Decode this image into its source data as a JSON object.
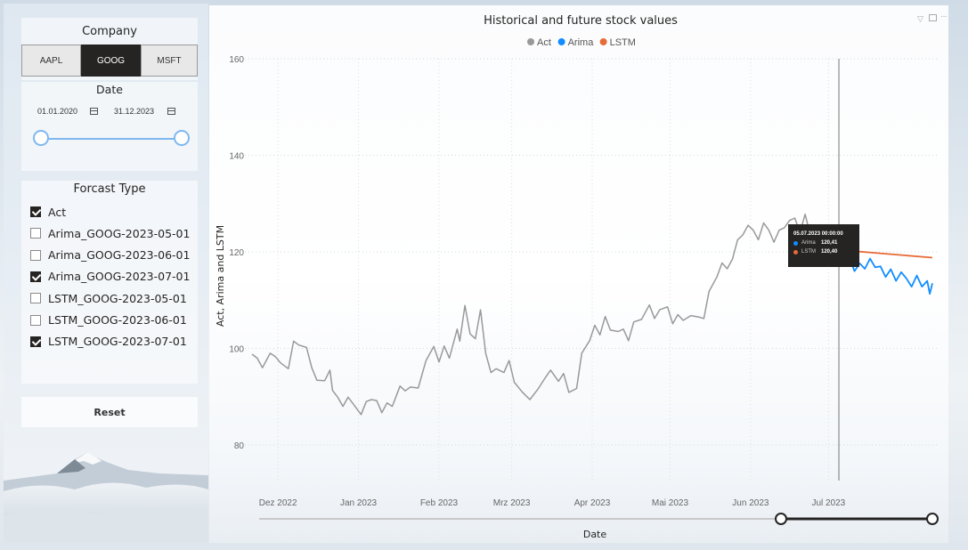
{
  "company_slicer": {
    "title": "Company",
    "options": [
      "AAPL",
      "GOOG",
      "MSFT"
    ],
    "selected": "GOOG"
  },
  "date_slicer": {
    "title": "Date",
    "start": "01.01.2020",
    "end": "31.12.2023"
  },
  "forecast_slicer": {
    "title": "Forcast Type",
    "items": [
      {
        "label": "Act",
        "checked": true
      },
      {
        "label": "Arima_GOOG-2023-05-01",
        "checked": false
      },
      {
        "label": "Arima_GOOG-2023-06-01",
        "checked": false
      },
      {
        "label": "Arima_GOOG-2023-07-01",
        "checked": true
      },
      {
        "label": "LSTM_GOOG-2023-05-01",
        "checked": false
      },
      {
        "label": "LSTM_GOOG-2023-06-01",
        "checked": false
      },
      {
        "label": "LSTM_GOOG-2023-07-01",
        "checked": true
      }
    ]
  },
  "reset_label": "Reset",
  "tooltip": {
    "title": "05.07.2023 00:00:00",
    "rows": [
      {
        "key": "Arima",
        "value": "120,41",
        "color": "#118dff"
      },
      {
        "key": "LSTM",
        "value": "120,40",
        "color": "#e66c37"
      }
    ]
  },
  "chart_data": {
    "type": "line",
    "title": "Historical and future stock values",
    "xlabel": "Date",
    "ylabel": "Act, Arima and LSTM",
    "ylim": [
      75,
      162
    ],
    "xlim": [
      "2022-11-21",
      "2023-08-10"
    ],
    "yticks": [
      80,
      100,
      120,
      140,
      160
    ],
    "xticks": [
      {
        "date": "2022-12-01",
        "label": "Dez 2022"
      },
      {
        "date": "2023-01-01",
        "label": "Jan 2023"
      },
      {
        "date": "2023-02-01",
        "label": "Feb 2023"
      },
      {
        "date": "2023-03-01",
        "label": "Mrz 2023"
      },
      {
        "date": "2023-04-01",
        "label": "Apr 2023"
      },
      {
        "date": "2023-05-01",
        "label": "Mai 2023"
      },
      {
        "date": "2023-06-01",
        "label": "Jun 2023"
      },
      {
        "date": "2023-07-01",
        "label": "Jul 2023"
      }
    ],
    "legend": {
      "position": "top-center"
    },
    "grid": true,
    "hover_date": "2023-07-05",
    "series": [
      {
        "name": "Act",
        "color": "#999999",
        "points": [
          [
            "2022-11-21",
            98.8
          ],
          [
            "2022-11-23",
            98.0
          ],
          [
            "2022-11-25",
            96.0
          ],
          [
            "2022-11-28",
            99.0
          ],
          [
            "2022-11-30",
            98.3
          ],
          [
            "2022-12-02",
            97.0
          ],
          [
            "2022-12-05",
            95.8
          ],
          [
            "2022-12-07",
            101.5
          ],
          [
            "2022-12-09",
            100.7
          ],
          [
            "2022-12-12",
            100.2
          ],
          [
            "2022-12-14",
            96.0
          ],
          [
            "2022-12-16",
            93.4
          ],
          [
            "2022-12-19",
            93.3
          ],
          [
            "2022-12-21",
            95.5
          ],
          [
            "2022-12-22",
            91.3
          ],
          [
            "2022-12-24",
            89.9
          ],
          [
            "2022-12-26",
            88.0
          ],
          [
            "2022-12-28",
            89.9
          ],
          [
            "2022-12-30",
            88.5
          ],
          [
            "2023-01-02",
            86.3
          ],
          [
            "2023-01-04",
            89.0
          ],
          [
            "2023-01-06",
            89.4
          ],
          [
            "2023-01-08",
            89.2
          ],
          [
            "2023-01-10",
            86.7
          ],
          [
            "2023-01-12",
            88.7
          ],
          [
            "2023-01-14",
            88.0
          ],
          [
            "2023-01-17",
            92.2
          ],
          [
            "2023-01-19",
            91.2
          ],
          [
            "2023-01-21",
            92.0
          ],
          [
            "2023-01-24",
            91.8
          ],
          [
            "2023-01-27",
            97.5
          ],
          [
            "2023-01-30",
            100.4
          ],
          [
            "2023-02-01",
            97.2
          ],
          [
            "2023-02-03",
            100.5
          ],
          [
            "2023-02-05",
            98.0
          ],
          [
            "2023-02-08",
            104.0
          ],
          [
            "2023-02-09",
            101.5
          ],
          [
            "2023-02-11",
            108.9
          ],
          [
            "2023-02-13",
            103.0
          ],
          [
            "2023-02-15",
            102.0
          ],
          [
            "2023-02-17",
            108.0
          ],
          [
            "2023-02-19",
            99.0
          ],
          [
            "2023-02-21",
            95.0
          ],
          [
            "2023-02-23",
            95.8
          ],
          [
            "2023-02-26",
            95.0
          ],
          [
            "2023-02-28",
            97.5
          ],
          [
            "2023-03-02",
            93.0
          ],
          [
            "2023-03-05",
            91.0
          ],
          [
            "2023-03-08",
            89.4
          ],
          [
            "2023-03-11",
            91.5
          ],
          [
            "2023-03-14",
            94.0
          ],
          [
            "2023-03-16",
            95.5
          ],
          [
            "2023-03-19",
            93.2
          ],
          [
            "2023-03-21",
            94.8
          ],
          [
            "2023-03-23",
            90.9
          ],
          [
            "2023-03-26",
            91.7
          ],
          [
            "2023-03-28",
            99.0
          ],
          [
            "2023-03-31",
            101.6
          ],
          [
            "2023-04-02",
            104.8
          ],
          [
            "2023-04-04",
            102.8
          ],
          [
            "2023-04-06",
            106.6
          ],
          [
            "2023-04-08",
            103.8
          ],
          [
            "2023-04-11",
            103.5
          ],
          [
            "2023-04-13",
            104.0
          ],
          [
            "2023-04-15",
            101.6
          ],
          [
            "2023-04-17",
            105.5
          ],
          [
            "2023-04-20",
            106.0
          ],
          [
            "2023-04-23",
            109.0
          ],
          [
            "2023-04-25",
            106.2
          ],
          [
            "2023-04-27",
            108.0
          ],
          [
            "2023-04-30",
            108.6
          ],
          [
            "2023-05-02",
            105.1
          ],
          [
            "2023-05-04",
            107.0
          ],
          [
            "2023-05-06",
            105.8
          ],
          [
            "2023-05-09",
            106.8
          ],
          [
            "2023-05-12",
            106.5
          ],
          [
            "2023-05-14",
            106.2
          ],
          [
            "2023-05-16",
            111.8
          ],
          [
            "2023-05-19",
            114.8
          ],
          [
            "2023-05-21",
            117.7
          ],
          [
            "2023-05-23",
            116.5
          ],
          [
            "2023-05-25",
            118.5
          ],
          [
            "2023-05-27",
            122.5
          ],
          [
            "2023-05-29",
            123.5
          ],
          [
            "2023-05-31",
            125.5
          ],
          [
            "2023-06-02",
            124.5
          ],
          [
            "2023-06-04",
            122.5
          ],
          [
            "2023-06-06",
            126.0
          ],
          [
            "2023-06-08",
            124.5
          ],
          [
            "2023-06-10",
            122.0
          ],
          [
            "2023-06-12",
            124.5
          ],
          [
            "2023-06-14",
            125.0
          ],
          [
            "2023-06-16",
            126.5
          ],
          [
            "2023-06-18",
            127.0
          ],
          [
            "2023-06-20",
            124.0
          ],
          [
            "2023-06-22",
            127.8
          ],
          [
            "2023-06-24",
            123.5
          ],
          [
            "2023-06-26",
            122.0
          ],
          [
            "2023-06-28",
            123.0
          ],
          [
            "2023-06-30",
            121.0
          ],
          [
            "2023-07-03",
            121.5
          ],
          [
            "2023-07-05",
            120.4
          ]
        ]
      },
      {
        "name": "Arima",
        "color": "#118dff",
        "points": [
          [
            "2023-07-05",
            120.4
          ],
          [
            "2023-07-07",
            118.2
          ],
          [
            "2023-07-09",
            119.0
          ],
          [
            "2023-07-11",
            116.0
          ],
          [
            "2023-07-13",
            117.6
          ],
          [
            "2023-07-15",
            116.5
          ],
          [
            "2023-07-17",
            118.6
          ],
          [
            "2023-07-19",
            116.8
          ],
          [
            "2023-07-21",
            117.0
          ],
          [
            "2023-07-23",
            114.8
          ],
          [
            "2023-07-25",
            116.4
          ],
          [
            "2023-07-27",
            114.0
          ],
          [
            "2023-07-29",
            115.8
          ],
          [
            "2023-07-31",
            114.5
          ],
          [
            "2023-08-02",
            112.8
          ],
          [
            "2023-08-04",
            115.1
          ],
          [
            "2023-08-06",
            112.8
          ],
          [
            "2023-08-08",
            114.0
          ],
          [
            "2023-08-09",
            111.3
          ],
          [
            "2023-08-10",
            113.5
          ]
        ]
      },
      {
        "name": "LSTM",
        "color": "#e66c37",
        "points": [
          [
            "2023-07-05",
            120.4
          ],
          [
            "2023-08-10",
            118.8
          ]
        ]
      }
    ]
  }
}
